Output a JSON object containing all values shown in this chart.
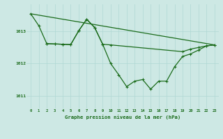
{
  "background_color": "#cde8e4",
  "grid_color": "#b0d8d4",
  "line_color": "#1a6b1a",
  "title": "Graphe pression niveau de la mer (hPa)",
  "xlim": [
    -0.5,
    23.5
  ],
  "ylim": [
    1010.6,
    1013.85
  ],
  "yticks": [
    1011,
    1012,
    1013
  ],
  "xticks": [
    0,
    1,
    2,
    3,
    4,
    5,
    6,
    7,
    8,
    9,
    10,
    11,
    12,
    13,
    14,
    15,
    16,
    17,
    18,
    19,
    20,
    21,
    22,
    23
  ],
  "line1_x": [
    0,
    23
  ],
  "line1_y": [
    1013.55,
    1012.58
  ],
  "line2_x": [
    0,
    1,
    2,
    3,
    4,
    5,
    6,
    7,
    8,
    9,
    10,
    11,
    12,
    13,
    14,
    15,
    16,
    17,
    18,
    19,
    20,
    21,
    22,
    23
  ],
  "line2_y": [
    1013.55,
    1013.18,
    1012.62,
    1012.61,
    1012.6,
    1012.59,
    1013.02,
    1013.38,
    1013.12,
    1012.6,
    1012.0,
    1011.65,
    1011.28,
    1011.45,
    1011.5,
    1011.2,
    1011.45,
    1011.45,
    1011.9,
    1012.22,
    1012.3,
    1012.42,
    1012.55,
    1012.58
  ],
  "line3_x": [
    2,
    3,
    4,
    5,
    6,
    7,
    8,
    9,
    10,
    19,
    20,
    21,
    22,
    23
  ],
  "line3_y": [
    1012.62,
    1012.61,
    1012.6,
    1012.59,
    1013.02,
    1013.38,
    1013.12,
    1012.6,
    1012.58,
    1012.37,
    1012.45,
    1012.5,
    1012.55,
    1012.58
  ]
}
